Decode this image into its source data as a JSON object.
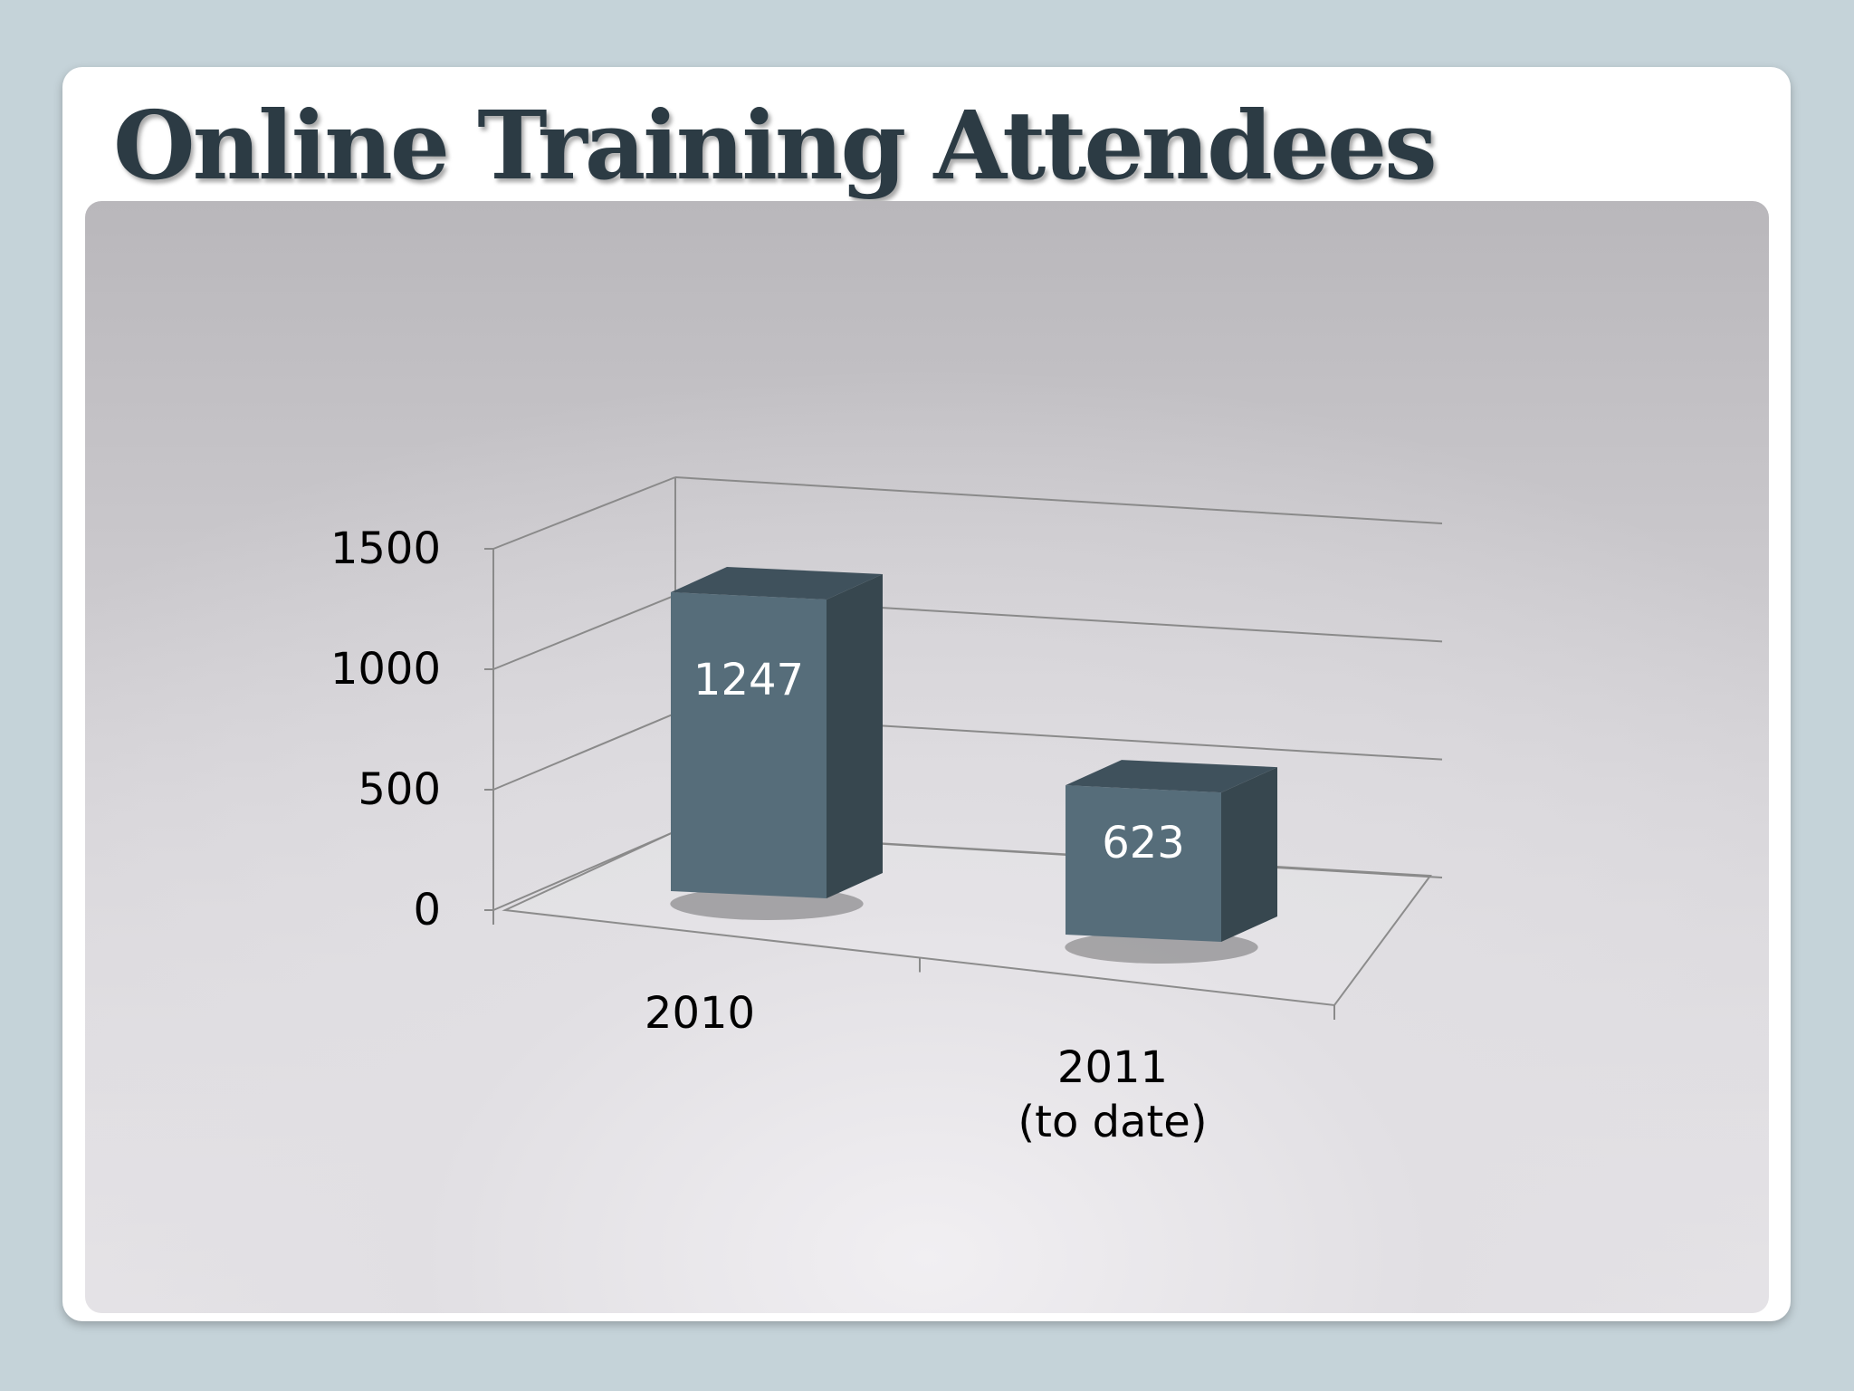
{
  "slide": {
    "title": "Online Training Attendees"
  },
  "chart_data": {
    "type": "bar",
    "categories": [
      "2010",
      "2011\n(to date)"
    ],
    "values": [
      1247,
      623
    ],
    "ylim": [
      0,
      1500
    ],
    "yticks": [
      0,
      500,
      1000,
      1500
    ],
    "data_labels": [
      "1247",
      "623"
    ],
    "style": "3d-column",
    "grid": true,
    "legend": "none",
    "colors": {
      "bar_front": "#566d7a",
      "bar_side": "#37474f",
      "bar_top": "#3f515c",
      "background": "#c5d3d9"
    }
  }
}
